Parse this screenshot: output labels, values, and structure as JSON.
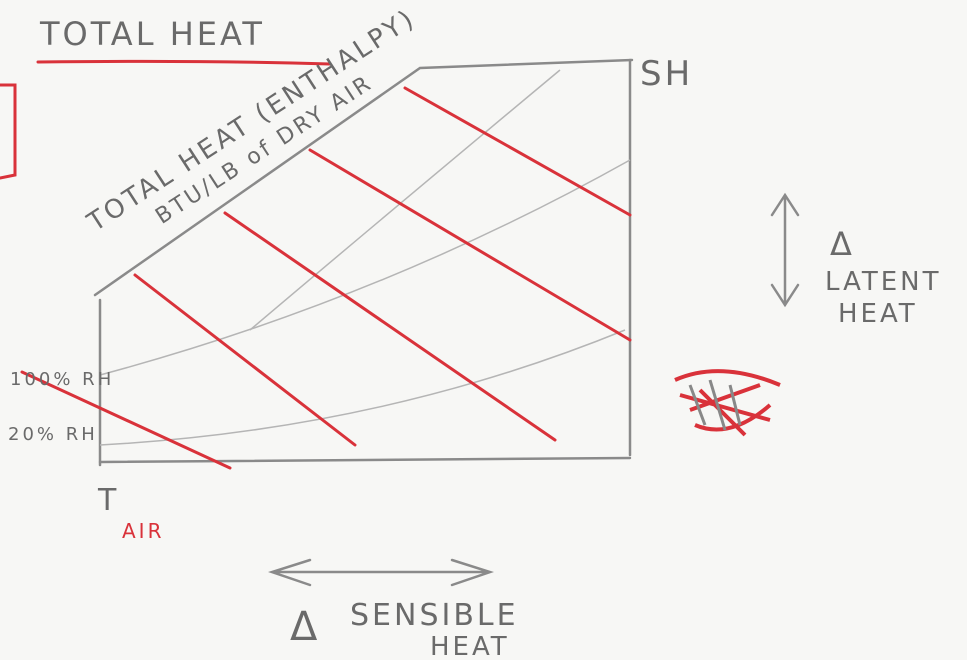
{
  "title": "TOTAL HEAT",
  "diagonal_label": {
    "line1": "TOTAL HEAT (ENTHALPY)",
    "line2": "BTU/LB of DRY AIR"
  },
  "corner_label": "SH",
  "rh_labels": [
    "100% RH",
    "20% RH"
  ],
  "x_axis": {
    "symbol": "T",
    "subscript": "AIR"
  },
  "latent": {
    "symbol": "Δ",
    "line1": "LATENT",
    "line2": "HEAT"
  },
  "sensible": {
    "symbol": "Δ",
    "line1": "SENSIBLE",
    "line2": "HEAT"
  }
}
